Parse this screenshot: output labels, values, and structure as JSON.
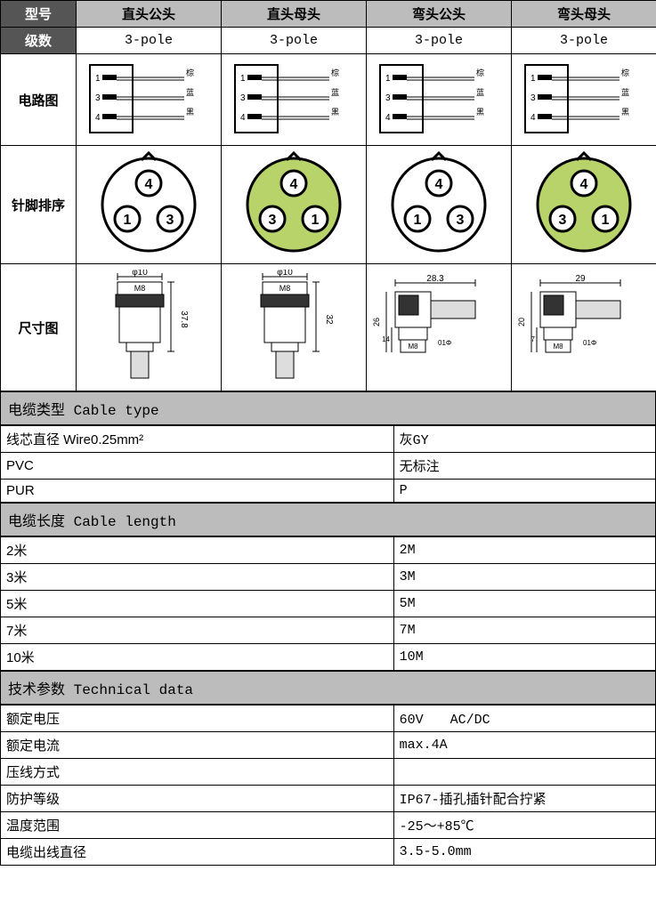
{
  "header": {
    "row1_label": "型号",
    "cols": [
      "直头公头",
      "直头母头",
      "弯头公头",
      "弯头母头"
    ],
    "row2_label": "级数",
    "poles": [
      "3-pole",
      "3-pole",
      "3-pole",
      "3-pole"
    ]
  },
  "row_labels": {
    "circuit": "电路图",
    "pinout": "针脚排序",
    "dimension": "尺寸图"
  },
  "circuit": {
    "pins": [
      {
        "num": "1",
        "label": "棕"
      },
      {
        "num": "3",
        "label": "蓝"
      },
      {
        "num": "4",
        "label": "黑"
      }
    ]
  },
  "pinout": {
    "male": {
      "fill": "#ffffff",
      "stroke": "#000",
      "pin_fill": "#ffffff",
      "order": [
        "1",
        "3",
        "4"
      ]
    },
    "female": {
      "fill": "#b8d36a",
      "stroke": "#000",
      "pin_fill": "#ffffff",
      "order": [
        "3",
        "1",
        "4"
      ]
    },
    "pin_labels": [
      "4",
      "1",
      "3"
    ]
  },
  "dimensions": {
    "straight_male": {
      "dia": "φ10",
      "thread": "M8",
      "length": "37.8"
    },
    "straight_female": {
      "dia": "φ10",
      "thread": "M8",
      "length": "32"
    },
    "angle_male": {
      "width": "28.3",
      "h1": "26",
      "h2": "14",
      "thread": "M8",
      "dia": "01Φ"
    },
    "angle_female": {
      "width": "29",
      "h1": "20",
      "h2": "7",
      "thread": "M8",
      "dia": "01Φ"
    }
  },
  "sections": {
    "cable_type": {
      "title": "电缆类型 Cable type",
      "rows": [
        {
          "l": "线芯直径 Wire0.25mm²",
          "r": "灰GY"
        },
        {
          "l": "PVC",
          "r": "无标注"
        },
        {
          "l": "PUR",
          "r": "P"
        }
      ]
    },
    "cable_length": {
      "title": "电缆长度 Cable length",
      "rows": [
        {
          "l": "2米",
          "r": "2M"
        },
        {
          "l": "3米",
          "r": "3M"
        },
        {
          "l": "5米",
          "r": "5M"
        },
        {
          "l": "7米",
          "r": "7M"
        },
        {
          "l": "10米",
          "r": "10M"
        }
      ]
    },
    "tech_data": {
      "title": "技术参数 Technical data",
      "rows": [
        {
          "l": "额定电压",
          "r": "60V　　AC/DC"
        },
        {
          "l": "额定电流",
          "r": "max.4A"
        },
        {
          "l": "压线方式",
          "r": ""
        },
        {
          "l": "防护等级",
          "r": "IP67-插孔插针配合拧紧"
        },
        {
          "l": "温度范围",
          "r": "-25～+85℃"
        },
        {
          "l": "电缆出线直径",
          "r": "3.5-5.0mm"
        }
      ]
    }
  },
  "colors": {
    "header_dark_bg": "#555555",
    "header_light_bg": "#bcbcbc",
    "pinout_female_fill": "#b8d36a",
    "border": "#000000"
  }
}
